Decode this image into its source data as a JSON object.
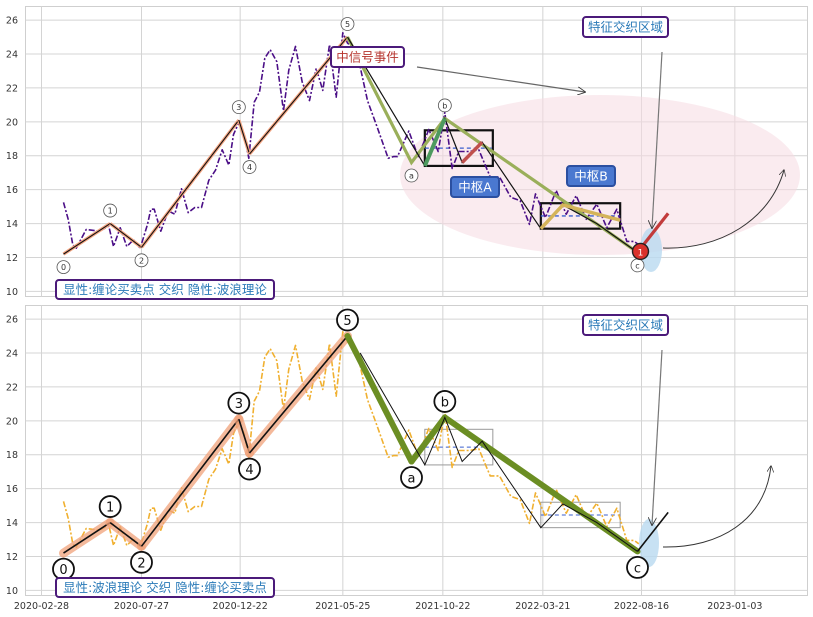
{
  "chart_data": [
    {
      "type": "line",
      "panel": "top",
      "ylim": [
        9.7,
        26.8
      ],
      "yticks": [
        10,
        12,
        14,
        16,
        18,
        20,
        22,
        24,
        26
      ],
      "grid": true,
      "colors": {
        "price": "#4b0f87",
        "bi": "#111111",
        "segment": "#9aaf5a",
        "hub": "#111111"
      },
      "price_series": {
        "dates": [
          "2020-04-01",
          "2020-04-08",
          "2020-04-15",
          "2020-04-20",
          "2020-05-05",
          "2020-05-25",
          "2020-06-08",
          "2020-06-15",
          "2020-06-25",
          "2020-07-05",
          "2020-07-15",
          "2020-07-25",
          "2020-08-05",
          "2020-08-10",
          "2020-08-15",
          "2020-08-25",
          "2020-09-05",
          "2020-09-15",
          "2020-09-25",
          "2020-10-05",
          "2020-10-15",
          "2020-10-25",
          "2020-11-05",
          "2020-11-15",
          "2020-11-25",
          "2020-12-05",
          "2020-12-12",
          "2020-12-20",
          "2020-12-28",
          "2021-01-04",
          "2021-01-12",
          "2021-01-20",
          "2021-01-28",
          "2021-02-05",
          "2021-02-15",
          "2021-02-25",
          "2021-03-05",
          "2021-03-15",
          "2021-03-25",
          "2021-04-05",
          "2021-04-15",
          "2021-04-25",
          "2021-05-05",
          "2021-05-15",
          "2021-05-25",
          "2021-06-01",
          "2021-06-15",
          "2021-07-01",
          "2021-07-15",
          "2021-08-01",
          "2021-08-09",
          "2021-08-15",
          "2021-09-01",
          "2021-09-15",
          "2021-10-01",
          "2021-10-15",
          "2021-10-25",
          "2021-11-05",
          "2021-11-15",
          "2021-12-01",
          "2021-12-15",
          "2022-01-01",
          "2022-01-15",
          "2022-02-01",
          "2022-02-15",
          "2022-03-01",
          "2022-03-10",
          "2022-03-25",
          "2022-04-10",
          "2022-04-25",
          "2022-05-10",
          "2022-05-25",
          "2022-06-10",
          "2022-06-25",
          "2022-07-10",
          "2022-07-25",
          "2022-08-05",
          "2022-08-12"
        ],
        "values": [
          14.9,
          14.6,
          12.4,
          12.9,
          13.3,
          13.9,
          13.5,
          13.0,
          13.4,
          13.0,
          12.7,
          12.9,
          13.6,
          15.2,
          14.5,
          13.9,
          14.4,
          14.9,
          15.7,
          15.0,
          14.6,
          15.3,
          16.2,
          17.5,
          18.0,
          17.8,
          18.9,
          20.3,
          18.9,
          18.2,
          20.8,
          22.1,
          23.4,
          24.6,
          23.2,
          21.0,
          22.7,
          24.8,
          22.0,
          21.6,
          22.8,
          22.2,
          24.2,
          21.8,
          24.9,
          25.0,
          23.8,
          21.6,
          19.4,
          18.2,
          17.6,
          18.3,
          19.1,
          18.3,
          19.2,
          18.6,
          20.2,
          17.6,
          17.9,
          18.6,
          18.0,
          17.1,
          16.4,
          15.9,
          15.0,
          14.3,
          15.4,
          14.7,
          15.6,
          14.9,
          15.3,
          14.6,
          14.8,
          14.1,
          14.5,
          13.3,
          12.6,
          13.1
        ]
      },
      "bi": [
        {
          "label": "0",
          "date": "2020-04-01",
          "value": 12.2
        },
        {
          "label": "1",
          "date": "2020-06-10",
          "value": 14.0
        },
        {
          "label": "2",
          "date": "2020-07-27",
          "value": 12.6
        },
        {
          "label": "3",
          "date": "2020-12-20",
          "value": 20.1
        },
        {
          "label": "4",
          "date": "2021-01-05",
          "value": 18.1
        },
        {
          "label": "5",
          "date": "2021-06-01",
          "value": 25.0
        },
        {
          "label": "a",
          "date": "2021-09-05",
          "value": 17.6
        },
        {
          "label": "b",
          "date": "2021-10-25",
          "value": 20.2
        },
        {
          "label": "c",
          "date": "2022-08-10",
          "value": 12.3
        }
      ],
      "hubs": [
        {
          "label": "中枢A",
          "x0": "2021-09-25",
          "x1": "2022-01-05",
          "y0": 17.4,
          "y1": 19.5
        },
        {
          "label": "中枢B",
          "x0": "2022-03-18",
          "x1": "2022-07-15",
          "y0": 13.7,
          "y1": 15.2
        }
      ],
      "annotations": {
        "signal": "中信号事件",
        "zone": "特征交织区域",
        "corner": "显性:缠论买卖点 交织 隐性:波浪理论",
        "buy_marker": "1"
      }
    },
    {
      "type": "line",
      "panel": "bottom",
      "ylim": [
        9.7,
        26.8
      ],
      "yticks": [
        10,
        12,
        14,
        16,
        18,
        20,
        22,
        24,
        26
      ],
      "grid": true,
      "colors": {
        "price": "#f0b030",
        "wave_up": "#f0a27a",
        "wave_down": "#6b8e23"
      },
      "waves": [
        {
          "label": "0",
          "date": "2020-04-01",
          "value": 12.2
        },
        {
          "label": "1",
          "date": "2020-06-10",
          "value": 14.0
        },
        {
          "label": "2",
          "date": "2020-07-27",
          "value": 12.6
        },
        {
          "label": "3",
          "date": "2020-12-20",
          "value": 20.1
        },
        {
          "label": "4",
          "date": "2021-01-05",
          "value": 18.1
        },
        {
          "label": "5",
          "date": "2021-06-01",
          "value": 25.0
        },
        {
          "label": "a",
          "date": "2021-09-05",
          "value": 17.6
        },
        {
          "label": "b",
          "date": "2021-10-25",
          "value": 20.2
        },
        {
          "label": "c",
          "date": "2022-08-10",
          "value": 12.3
        }
      ],
      "annotations": {
        "zone": "特征交织区域",
        "corner": "显性:波浪理论 交织 隐性:缠论买卖点"
      },
      "xticks": [
        "2020-02-28",
        "2020-07-27",
        "2020-12-22",
        "2021-05-25",
        "2021-10-22",
        "2022-03-21",
        "2022-08-16",
        "2023-01-03"
      ]
    }
  ]
}
